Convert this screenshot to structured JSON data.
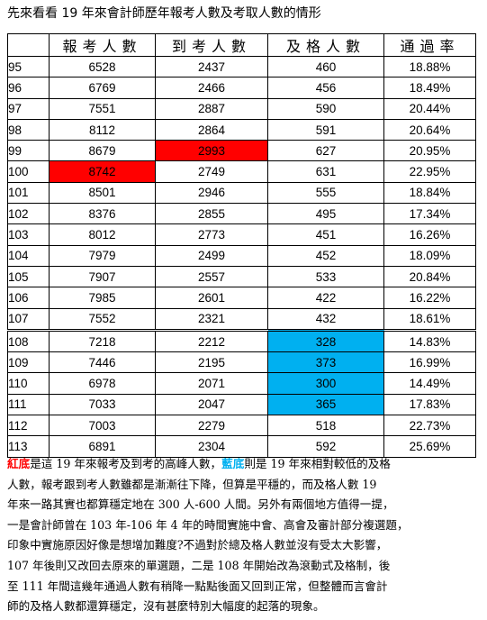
{
  "title": "先來看看 19 年來會計師歷年報考人數及考取人數的情形",
  "table": {
    "headers": [
      "",
      "報考人數",
      "到考人數",
      "及格人數",
      "通過率"
    ],
    "rows": [
      {
        "year": "95",
        "applied": "6528",
        "attended": "2437",
        "passed": "460",
        "rate": "18.88%"
      },
      {
        "year": "96",
        "applied": "6769",
        "attended": "2466",
        "passed": "456",
        "rate": "18.49%"
      },
      {
        "year": "97",
        "applied": "7551",
        "attended": "2887",
        "passed": "590",
        "rate": "20.44%"
      },
      {
        "year": "98",
        "applied": "8112",
        "attended": "2864",
        "passed": "591",
        "rate": "20.64%"
      },
      {
        "year": "99",
        "applied": "8679",
        "attended": "2993",
        "passed": "627",
        "rate": "20.95%"
      },
      {
        "year": "100",
        "applied": "8742",
        "attended": "2749",
        "passed": "631",
        "rate": "22.95%"
      },
      {
        "year": "101",
        "applied": "8501",
        "attended": "2946",
        "passed": "555",
        "rate": "18.84%"
      },
      {
        "year": "102",
        "applied": "8376",
        "attended": "2855",
        "passed": "495",
        "rate": "17.34%"
      },
      {
        "year": "103",
        "applied": "8012",
        "attended": "2773",
        "passed": "451",
        "rate": "16.26%"
      },
      {
        "year": "104",
        "applied": "7979",
        "attended": "2499",
        "passed": "452",
        "rate": "18.09%"
      },
      {
        "year": "105",
        "applied": "7907",
        "attended": "2557",
        "passed": "533",
        "rate": "20.84%"
      },
      {
        "year": "106",
        "applied": "7985",
        "attended": "2601",
        "passed": "422",
        "rate": "16.22%"
      },
      {
        "year": "107",
        "applied": "7552",
        "attended": "2321",
        "passed": "432",
        "rate": "18.61%"
      },
      {
        "year": "108",
        "applied": "7218",
        "attended": "2212",
        "passed": "328",
        "rate": "14.83%"
      },
      {
        "year": "109",
        "applied": "7446",
        "attended": "2195",
        "passed": "373",
        "rate": "16.99%"
      },
      {
        "year": "110",
        "applied": "6978",
        "attended": "2071",
        "passed": "300",
        "rate": "14.49%"
      },
      {
        "year": "111",
        "applied": "7033",
        "attended": "2047",
        "passed": "365",
        "rate": "17.83%"
      },
      {
        "year": "112",
        "applied": "7003",
        "attended": "2279",
        "passed": "518",
        "rate": "22.73%"
      },
      {
        "year": "113",
        "applied": "6891",
        "attended": "2304",
        "passed": "592",
        "rate": "25.69%"
      }
    ],
    "highlight_colors": {
      "red": "#ff0000",
      "blue": "#00b0f0"
    }
  },
  "note": {
    "red_keyword": "紅底",
    "line1_a": "是這 19 年來報考及到考的高峰人數，",
    "blue_keyword": "藍底",
    "line1_b": "則是 19 年來相對較低的及格",
    "lines": [
      "人數，報考跟到考人數雖都是漸漸往下降，但算是平穩的，而及格人數 19",
      "年來一路其實也都算穩定地在 300 人-600 人間。另外有兩個地方值得一提，",
      "一是會計師曾在 103 年-106 年 4 年的時間實施中會、高會及審計部分複選題，",
      "印象中實施原因好像是想增加難度?不過對於總及格人數並沒有受太大影響，",
      "107 年後則又改回去原來的單選題，二是 108 年開始改為滾動式及格制，後",
      "至 111 年間這幾年通過人數有稍降一點點後面又回到正常，但整體而言會計",
      "師的及格人數都還算穩定，沒有甚麼特別大幅度的起落的現象。"
    ]
  }
}
